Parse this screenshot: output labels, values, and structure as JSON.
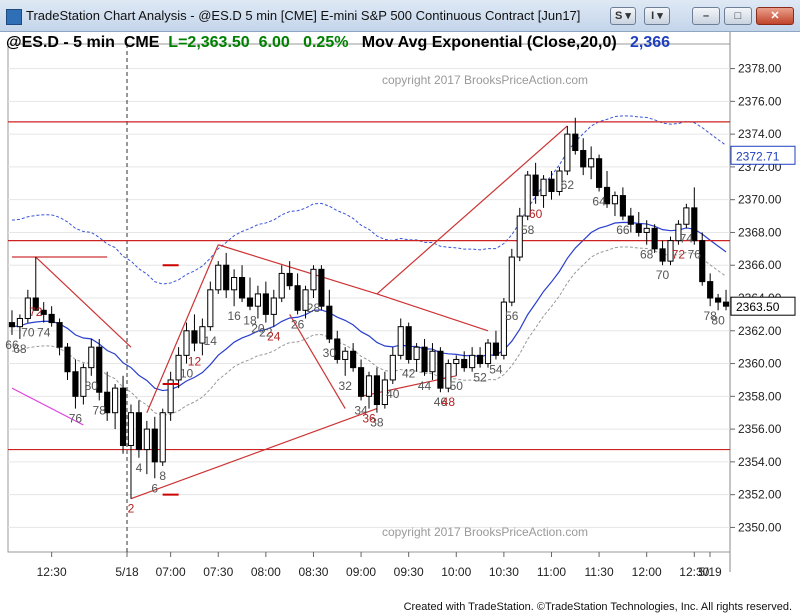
{
  "window": {
    "title": "TradeStation Chart Analysis - @ES.D 5 min [CME] E-mini S&P 500 Continuous Contract [Jun17]",
    "buttons": [
      "S",
      "I"
    ]
  },
  "chart_header": {
    "symbol": "@ES.D - 5 min",
    "exchange": "CME",
    "last": "L=2,363.50",
    "change": "6.00",
    "pct_change": "0.25%",
    "indicator": "Mov Avg Exponential (Close,20,0)",
    "indicator_value": "2,366",
    "colors": {
      "symbol": "#000000",
      "last": "#008000",
      "change": "#008000",
      "pct": "#008000",
      "indicator": "#000000",
      "indicator_value": "#0000cc"
    }
  },
  "watermarks": [
    "copyright 2017 BrooksPriceAction.com",
    "copyright 2017 BrooksPriceAction.com"
  ],
  "footer": {
    "credit": "Created with TradeStation. ©TradeStation Technologies, Inc. All rights reserved."
  },
  "chart_data": {
    "type": "candlestick",
    "y_axis": {
      "min": 2348.5,
      "max": 2379.5,
      "ticks": [
        "2350.00",
        "2352.00",
        "2354.00",
        "2356.00",
        "2358.00",
        "2360.00",
        "2362.00",
        "2364.00",
        "2366.00",
        "2368.00",
        "2370.00",
        "2372.00",
        "2374.00",
        "2376.00",
        "2378.00"
      ],
      "side": "right"
    },
    "x_labels": [
      "12:30",
      "5/18",
      "07:00",
      "07:30",
      "08:00",
      "08:30",
      "09:00",
      "09:30",
      "10:00",
      "10:30",
      "11:00",
      "11:30",
      "12:00",
      "12:30",
      "5/19"
    ],
    "price_tags": [
      {
        "value": "2372.71",
        "price": 2372.71,
        "color": "#1f3fbf"
      },
      {
        "value": "2363.50",
        "price": 2363.5,
        "color": "#000000"
      }
    ],
    "grid": true,
    "bars": [
      [
        2362.5,
        2363.25,
        2361.75,
        2362.25
      ],
      [
        2362.25,
        2363.0,
        2361.5,
        2362.75
      ],
      [
        2362.75,
        2364.5,
        2362.5,
        2364.0
      ],
      [
        2364.0,
        2366.5,
        2363.75,
        2363.25
      ],
      [
        2363.25,
        2363.75,
        2362.5,
        2363.0
      ],
      [
        2363.0,
        2363.5,
        2362.25,
        2362.5
      ],
      [
        2362.5,
        2362.75,
        2360.5,
        2361.0
      ],
      [
        2361.0,
        2361.25,
        2359.0,
        2359.5
      ],
      [
        2359.5,
        2360.25,
        2357.25,
        2358.0
      ],
      [
        2358.0,
        2360.0,
        2357.5,
        2359.75
      ],
      [
        2359.75,
        2361.5,
        2359.25,
        2361.0
      ],
      [
        2361.0,
        2361.5,
        2357.75,
        2358.25
      ],
      [
        2358.25,
        2359.5,
        2356.5,
        2357.0
      ],
      [
        2357.0,
        2358.75,
        2356.0,
        2358.5
      ],
      [
        2358.5,
        2359.25,
        2354.5,
        2355.0
      ],
      [
        2355.0,
        2357.5,
        2351.75,
        2357.0
      ],
      [
        2357.0,
        2357.75,
        2354.25,
        2354.75
      ],
      [
        2354.75,
        2356.5,
        2353.25,
        2356.0
      ],
      [
        2356.0,
        2356.75,
        2353.0,
        2354.0
      ],
      [
        2354.0,
        2357.25,
        2353.75,
        2357.0
      ],
      [
        2357.0,
        2359.5,
        2356.5,
        2359.0
      ],
      [
        2359.0,
        2361.0,
        2358.5,
        2360.5
      ],
      [
        2360.5,
        2362.5,
        2360.0,
        2362.0
      ],
      [
        2362.0,
        2363.0,
        2360.75,
        2361.25
      ],
      [
        2361.25,
        2362.75,
        2360.5,
        2362.25
      ],
      [
        2362.25,
        2365.0,
        2362.0,
        2364.5
      ],
      [
        2364.5,
        2366.25,
        2364.25,
        2366.0
      ],
      [
        2366.0,
        2366.75,
        2364.0,
        2364.5
      ],
      [
        2364.5,
        2365.75,
        2363.5,
        2365.25
      ],
      [
        2365.25,
        2366.0,
        2363.75,
        2364.0
      ],
      [
        2364.0,
        2365.25,
        2363.25,
        2363.5
      ],
      [
        2363.5,
        2364.75,
        2362.75,
        2364.25
      ],
      [
        2364.25,
        2365.0,
        2362.5,
        2363.0
      ],
      [
        2363.0,
        2364.5,
        2362.25,
        2364.0
      ],
      [
        2364.0,
        2366.0,
        2363.75,
        2365.5
      ],
      [
        2365.5,
        2366.25,
        2364.5,
        2364.75
      ],
      [
        2364.75,
        2365.5,
        2363.0,
        2363.25
      ],
      [
        2363.25,
        2364.75,
        2362.75,
        2364.5
      ],
      [
        2364.5,
        2366.0,
        2364.0,
        2365.75
      ],
      [
        2365.75,
        2366.0,
        2363.25,
        2363.5
      ],
      [
        2363.5,
        2364.5,
        2361.25,
        2361.5
      ],
      [
        2361.5,
        2362.0,
        2360.0,
        2360.25
      ],
      [
        2360.25,
        2361.0,
        2359.25,
        2360.75
      ],
      [
        2360.75,
        2361.25,
        2359.5,
        2359.75
      ],
      [
        2359.75,
        2360.25,
        2357.75,
        2358.0
      ],
      [
        2358.0,
        2359.5,
        2357.25,
        2359.25
      ],
      [
        2359.25,
        2359.75,
        2357.0,
        2357.5
      ],
      [
        2357.5,
        2359.5,
        2357.25,
        2359.0
      ],
      [
        2359.0,
        2361.0,
        2358.75,
        2360.5
      ],
      [
        2360.5,
        2362.75,
        2360.25,
        2362.25
      ],
      [
        2362.25,
        2362.5,
        2360.0,
        2360.25
      ],
      [
        2360.25,
        2361.25,
        2359.5,
        2361.0
      ],
      [
        2361.0,
        2361.5,
        2359.25,
        2359.5
      ],
      [
        2359.5,
        2361.25,
        2359.0,
        2360.75
      ],
      [
        2360.75,
        2361.0,
        2358.25,
        2358.5
      ],
      [
        2358.5,
        2360.25,
        2358.25,
        2360.0
      ],
      [
        2360.0,
        2360.5,
        2359.25,
        2360.25
      ],
      [
        2360.25,
        2360.75,
        2359.5,
        2359.75
      ],
      [
        2359.75,
        2361.0,
        2359.5,
        2360.5
      ],
      [
        2360.5,
        2361.0,
        2359.75,
        2360.0
      ],
      [
        2360.0,
        2361.5,
        2359.75,
        2361.25
      ],
      [
        2361.25,
        2362.0,
        2360.25,
        2360.5
      ],
      [
        2360.5,
        2364.0,
        2360.25,
        2363.75
      ],
      [
        2363.75,
        2367.0,
        2363.5,
        2366.5
      ],
      [
        2366.5,
        2369.5,
        2366.25,
        2369.0
      ],
      [
        2369.0,
        2371.75,
        2368.75,
        2371.5
      ],
      [
        2371.5,
        2372.25,
        2369.75,
        2370.25
      ],
      [
        2370.25,
        2371.5,
        2369.5,
        2371.25
      ],
      [
        2371.25,
        2371.75,
        2370.0,
        2370.5
      ],
      [
        2370.5,
        2372.0,
        2370.25,
        2371.75
      ],
      [
        2371.75,
        2374.5,
        2371.5,
        2374.0
      ],
      [
        2374.0,
        2375.0,
        2372.75,
        2373.0
      ],
      [
        2373.0,
        2373.75,
        2371.5,
        2372.0
      ],
      [
        2372.0,
        2373.25,
        2371.25,
        2372.5
      ],
      [
        2372.5,
        2372.75,
        2370.5,
        2370.75
      ],
      [
        2370.75,
        2371.75,
        2369.5,
        2369.75
      ],
      [
        2369.75,
        2370.5,
        2369.0,
        2370.25
      ],
      [
        2370.25,
        2370.75,
        2368.75,
        2369.0
      ],
      [
        2369.0,
        2369.5,
        2368.0,
        2368.5
      ],
      [
        2368.5,
        2369.25,
        2367.75,
        2368.0
      ],
      [
        2368.0,
        2368.75,
        2367.25,
        2368.25
      ],
      [
        2368.25,
        2368.5,
        2366.75,
        2367.0
      ],
      [
        2367.0,
        2367.5,
        2366.0,
        2366.25
      ],
      [
        2366.25,
        2367.75,
        2366.0,
        2367.5
      ],
      [
        2367.5,
        2368.75,
        2367.25,
        2368.5
      ],
      [
        2368.5,
        2369.75,
        2368.25,
        2369.5
      ],
      [
        2369.5,
        2370.75,
        2367.25,
        2367.5
      ],
      [
        2367.5,
        2368.0,
        2364.75,
        2365.0
      ],
      [
        2365.0,
        2365.5,
        2363.5,
        2364.0
      ],
      [
        2364.0,
        2364.25,
        2363.25,
        2363.75
      ],
      [
        2363.75,
        2364.5,
        2363.25,
        2363.5
      ]
    ],
    "bar_labels": [
      {
        "bar": 0,
        "text": "66",
        "pos": "below",
        "color": "#555555"
      },
      {
        "bar": 1,
        "text": "68",
        "pos": "below",
        "color": "#555555"
      },
      {
        "bar": 2,
        "text": "70",
        "pos": "below",
        "color": "#555555"
      },
      {
        "bar": 3,
        "text": "72",
        "pos": "below",
        "color": "#b22222"
      },
      {
        "bar": 4,
        "text": "74",
        "pos": "below",
        "color": "#555555"
      },
      {
        "bar": 8,
        "text": "76",
        "pos": "below",
        "color": "#555555"
      },
      {
        "bar": 10,
        "text": "80",
        "pos": "below",
        "color": "#555555"
      },
      {
        "bar": 11,
        "text": "78",
        "pos": "below",
        "color": "#555555"
      },
      {
        "bar": 15,
        "text": "2",
        "pos": "below",
        "color": "#b22222"
      },
      {
        "bar": 16,
        "text": "4",
        "pos": "below",
        "color": "#555555"
      },
      {
        "bar": 18,
        "text": "6",
        "pos": "below",
        "color": "#555555"
      },
      {
        "bar": 19,
        "text": "8",
        "pos": "below",
        "color": "#555555"
      },
      {
        "bar": 22,
        "text": "10",
        "pos": "below",
        "color": "#555555"
      },
      {
        "bar": 23,
        "text": "12",
        "pos": "below",
        "color": "#b22222"
      },
      {
        "bar": 25,
        "text": "14",
        "pos": "below",
        "color": "#555555"
      },
      {
        "bar": 28,
        "text": "16",
        "pos": "below",
        "color": "#555555"
      },
      {
        "bar": 30,
        "text": "18",
        "pos": "below",
        "color": "#555555"
      },
      {
        "bar": 31,
        "text": "20",
        "pos": "below",
        "color": "#555555"
      },
      {
        "bar": 32,
        "text": "22",
        "pos": "below",
        "color": "#555555"
      },
      {
        "bar": 33,
        "text": "24",
        "pos": "below",
        "color": "#b22222"
      },
      {
        "bar": 36,
        "text": "26",
        "pos": "below",
        "color": "#555555"
      },
      {
        "bar": 38,
        "text": "28",
        "pos": "below",
        "color": "#555555"
      },
      {
        "bar": 40,
        "text": "30",
        "pos": "below",
        "color": "#555555"
      },
      {
        "bar": 42,
        "text": "32",
        "pos": "below",
        "color": "#555555"
      },
      {
        "bar": 44,
        "text": "34",
        "pos": "below",
        "color": "#555555"
      },
      {
        "bar": 45,
        "text": "36",
        "pos": "below",
        "color": "#b22222"
      },
      {
        "bar": 46,
        "text": "38",
        "pos": "below",
        "color": "#555555"
      },
      {
        "bar": 48,
        "text": "40",
        "pos": "below",
        "color": "#555555"
      },
      {
        "bar": 50,
        "text": "42",
        "pos": "below",
        "color": "#555555"
      },
      {
        "bar": 52,
        "text": "44",
        "pos": "below",
        "color": "#555555"
      },
      {
        "bar": 54,
        "text": "46",
        "pos": "below",
        "color": "#555555"
      },
      {
        "bar": 55,
        "text": "48",
        "pos": "below",
        "color": "#b22222"
      },
      {
        "bar": 56,
        "text": "50",
        "pos": "below",
        "color": "#555555"
      },
      {
        "bar": 59,
        "text": "52",
        "pos": "below",
        "color": "#555555"
      },
      {
        "bar": 61,
        "text": "54",
        "pos": "below",
        "color": "#555555"
      },
      {
        "bar": 63,
        "text": "56",
        "pos": "below",
        "color": "#555555"
      },
      {
        "bar": 65,
        "text": "58",
        "pos": "below",
        "color": "#555555"
      },
      {
        "bar": 66,
        "text": "60",
        "pos": "below",
        "color": "#b22222"
      },
      {
        "bar": 70,
        "text": "62",
        "pos": "below",
        "color": "#555555"
      },
      {
        "bar": 74,
        "text": "64",
        "pos": "below",
        "color": "#555555"
      },
      {
        "bar": 77,
        "text": "66",
        "pos": "below",
        "color": "#555555"
      },
      {
        "bar": 80,
        "text": "68",
        "pos": "below",
        "color": "#555555"
      },
      {
        "bar": 82,
        "text": "70",
        "pos": "below",
        "color": "#555555"
      },
      {
        "bar": 84,
        "text": "72",
        "pos": "below",
        "color": "#b22222"
      },
      {
        "bar": 85,
        "text": "74",
        "pos": "below",
        "color": "#555555"
      },
      {
        "bar": 86,
        "text": "76",
        "pos": "below",
        "color": "#555555"
      },
      {
        "bar": 88,
        "text": "78",
        "pos": "below",
        "color": "#555555"
      },
      {
        "bar": 89,
        "text": "80",
        "pos": "below",
        "color": "#555555"
      }
    ],
    "horizontal_lines": [
      {
        "price": 2374.75,
        "color": "#cc2222"
      },
      {
        "price": 2367.5,
        "color": "#cc2222"
      },
      {
        "price": 2354.75,
        "color": "#cc2222"
      }
    ],
    "trend_lines": [
      {
        "from": [
          0,
          2366.5
        ],
        "to": [
          12,
          2366.5
        ],
        "color": "#cc3333"
      },
      {
        "from": [
          3,
          2366.5
        ],
        "to": [
          15,
          2361.0
        ],
        "color": "#cc3333"
      },
      {
        "from": [
          15,
          2351.75
        ],
        "to": [
          46,
          2357.25
        ],
        "color": "#cc3333"
      },
      {
        "from": [
          44,
          2358.0
        ],
        "to": [
          56,
          2359.25
        ],
        "color": "#cc3333"
      },
      {
        "from": [
          17,
          2357.0
        ],
        "to": [
          26,
          2367.25
        ],
        "color": "#cc3333"
      },
      {
        "from": [
          26,
          2367.25
        ],
        "to": [
          46,
          2364.25
        ],
        "color": "#cc3333"
      },
      {
        "from": [
          46,
          2364.25
        ],
        "to": [
          60,
          2362.0
        ],
        "color": "#cc3333"
      },
      {
        "from": [
          46,
          2364.25
        ],
        "to": [
          70,
          2374.5
        ],
        "color": "#cc3333"
      },
      {
        "from": [
          35,
          2363.0
        ],
        "to": [
          42,
          2357.25
        ],
        "color": "#cc3333"
      },
      {
        "from": [
          0,
          2358.5
        ],
        "to": [
          9,
          2356.25
        ],
        "color": "#e040e0"
      }
    ],
    "short_marks": [
      {
        "bar": 20,
        "price": 2366.0,
        "color": "#cc0000"
      },
      {
        "bar": 20,
        "price": 2358.75,
        "color": "#cc0000"
      },
      {
        "bar": 20,
        "price": 2352.0,
        "color": "#cc0000"
      }
    ],
    "session_break_bar": 14.5
  }
}
